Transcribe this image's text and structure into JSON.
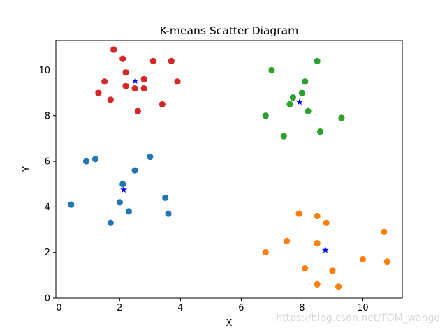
{
  "chart_data": {
    "type": "scatter",
    "title": "K-means Scatter Diagram",
    "xlabel": "X",
    "ylabel": "Y",
    "xlim": [
      -0.1,
      11.3
    ],
    "ylim": [
      0,
      11.3
    ],
    "xticks": [
      0,
      2,
      4,
      6,
      8,
      10
    ],
    "yticks": [
      0,
      2,
      4,
      6,
      8,
      10
    ],
    "grid": false,
    "series": [
      {
        "color": "#1f77b4",
        "marker": "circle",
        "points": [
          [
            0.4,
            4.1
          ],
          [
            0.9,
            6.0
          ],
          [
            1.2,
            6.1
          ],
          [
            1.7,
            3.3
          ],
          [
            2.0,
            4.2
          ],
          [
            2.1,
            5.0
          ],
          [
            2.3,
            3.8
          ],
          [
            2.5,
            5.6
          ],
          [
            3.0,
            6.2
          ],
          [
            3.5,
            4.4
          ],
          [
            3.6,
            3.7
          ]
        ]
      },
      {
        "color": "#ff7f0e",
        "marker": "circle",
        "points": [
          [
            6.8,
            2.0
          ],
          [
            7.5,
            2.5
          ],
          [
            7.9,
            3.7
          ],
          [
            8.1,
            1.3
          ],
          [
            8.5,
            3.6
          ],
          [
            8.5,
            2.4
          ],
          [
            8.5,
            0.6
          ],
          [
            8.8,
            3.3
          ],
          [
            9.0,
            1.2
          ],
          [
            9.2,
            0.5
          ],
          [
            10.0,
            1.7
          ],
          [
            10.7,
            2.9
          ],
          [
            10.8,
            1.6
          ]
        ]
      },
      {
        "color": "#2ca02c",
        "marker": "circle",
        "points": [
          [
            6.8,
            8.0
          ],
          [
            7.0,
            10.0
          ],
          [
            7.4,
            7.1
          ],
          [
            7.6,
            8.5
          ],
          [
            7.7,
            8.8
          ],
          [
            8.0,
            9.0
          ],
          [
            8.1,
            9.5
          ],
          [
            8.2,
            8.2
          ],
          [
            8.5,
            10.4
          ],
          [
            8.6,
            7.3
          ],
          [
            9.3,
            7.9
          ]
        ]
      },
      {
        "color": "#d62728",
        "marker": "circle",
        "points": [
          [
            1.3,
            9.0
          ],
          [
            1.5,
            9.5
          ],
          [
            1.7,
            8.7
          ],
          [
            1.8,
            10.9
          ],
          [
            2.1,
            10.5
          ],
          [
            2.2,
            9.9
          ],
          [
            2.2,
            9.3
          ],
          [
            2.5,
            9.2
          ],
          [
            2.6,
            8.2
          ],
          [
            2.8,
            9.6
          ],
          [
            2.8,
            9.2
          ],
          [
            3.1,
            10.4
          ],
          [
            3.4,
            8.5
          ],
          [
            3.7,
            10.4
          ],
          [
            3.9,
            9.5
          ]
        ]
      },
      {
        "color": "#0000ff",
        "marker": "star",
        "points": [
          [
            2.13,
            4.75
          ],
          [
            8.77,
            2.1
          ],
          [
            7.92,
            8.6
          ],
          [
            2.51,
            9.53
          ]
        ]
      }
    ]
  },
  "watermark": "https://blog.csdn.net/TOM_wango"
}
